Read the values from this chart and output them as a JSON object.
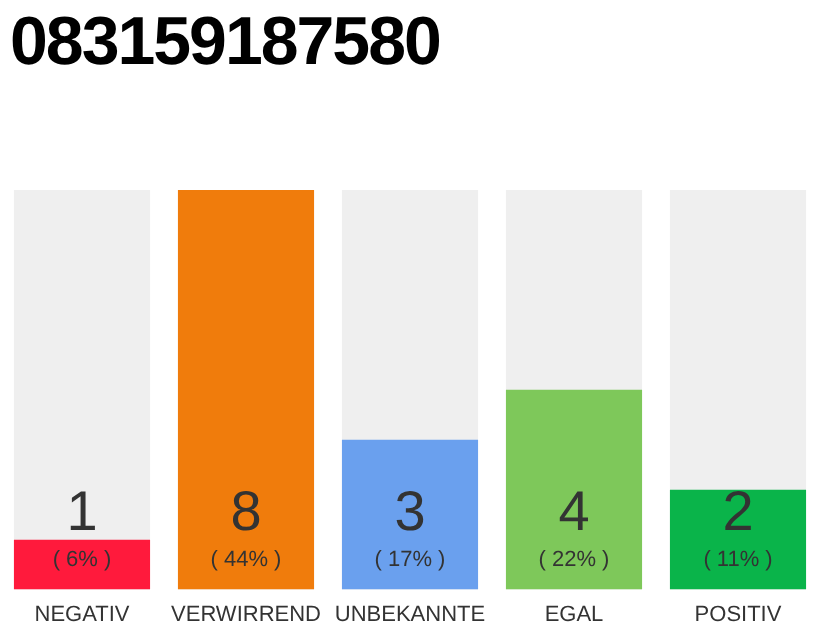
{
  "chart_data": {
    "type": "bar",
    "title": "083159187580",
    "categories": [
      "NEGATIV",
      "VERWIRREND",
      "UNBEKANNTE",
      "EGAL",
      "POSITIV"
    ],
    "values": [
      1,
      8,
      3,
      4,
      2
    ],
    "colors": [
      "#ff1a3c",
      "#f07c0c",
      "#6aa0ee",
      "#7ec85a",
      "#0ab44a"
    ],
    "data_labels": true,
    "annotations": [
      "( 6% )",
      "( 44% )",
      "( 17% )",
      "( 22% )",
      "( 11% )"
    ],
    "grid": false,
    "legend": false,
    "tick_labels": "x"
  }
}
